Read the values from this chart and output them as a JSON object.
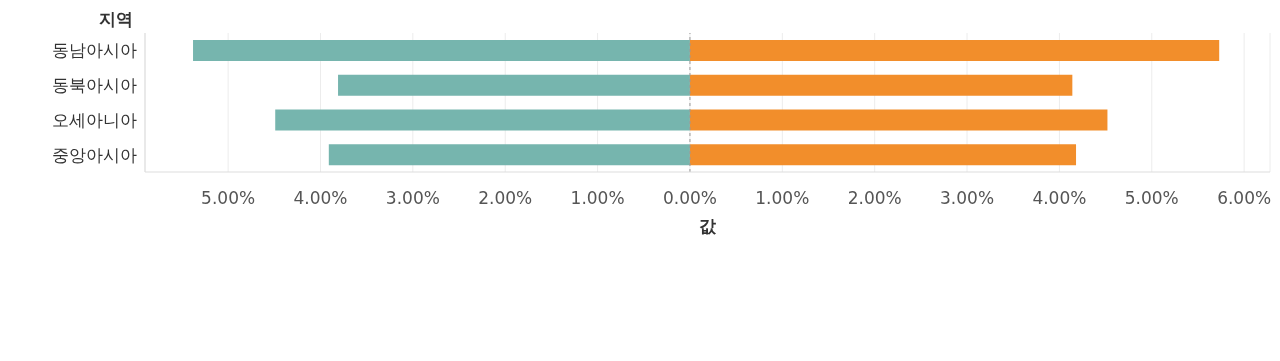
{
  "chart_data": {
    "type": "bar",
    "orientation": "horizontal",
    "stacked": true,
    "ylabel": "지역",
    "xlabel": "값",
    "categories": [
      "동남아시아",
      "동북아시아",
      "오세아니아",
      "중앙아시아"
    ],
    "series": [
      {
        "color": "#76b5ae",
        "values": [
          -5.38,
          -3.81,
          -4.49,
          -3.91
        ]
      },
      {
        "color": "#f28e2b",
        "values": [
          5.73,
          4.14,
          4.52,
          4.18
        ]
      }
    ],
    "xlim": [
      -5.9,
      6.28
    ],
    "xticks": [
      {
        "value": -5,
        "label": "5.00%"
      },
      {
        "value": -4,
        "label": "4.00%"
      },
      {
        "value": -3,
        "label": "3.00%"
      },
      {
        "value": -2,
        "label": "2.00%"
      },
      {
        "value": -1,
        "label": "1.00%"
      },
      {
        "value": 0,
        "label": "0.00%"
      },
      {
        "value": 1,
        "label": "1.00%"
      },
      {
        "value": 2,
        "label": "2.00%"
      },
      {
        "value": 3,
        "label": "3.00%"
      },
      {
        "value": 4,
        "label": "4.00%"
      },
      {
        "value": 5,
        "label": "5.00%"
      },
      {
        "value": 6,
        "label": "6.00%"
      }
    ],
    "grid": "x",
    "ref_lines": [
      {
        "axis": "x",
        "value": 0,
        "color": "#999999",
        "line_style": "dashed"
      }
    ]
  }
}
